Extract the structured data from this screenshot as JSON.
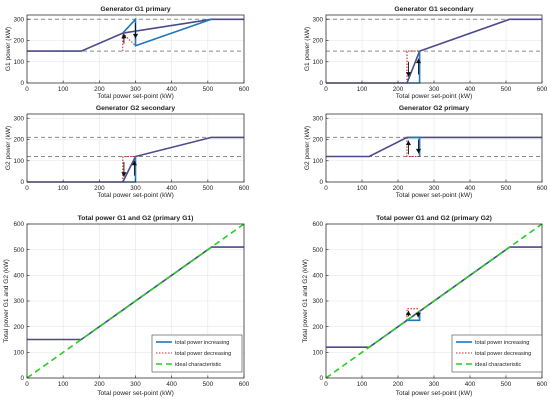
{
  "figure": {
    "colors": {
      "increasing": "#1f77bd",
      "decreasing": "#d62728",
      "ideal": "#22d022",
      "combined": "#4a4a8c",
      "ref": "#8a8a8a",
      "axis": "#333333",
      "grid": "#e6e6e6"
    }
  },
  "chart_data": [
    {
      "type": "line",
      "title": "Generator G1 primary",
      "xlabel": "Total power set-point (kW)",
      "ylabel": "G1 power (kW)",
      "xlim": [
        0,
        600
      ],
      "ylim": [
        0,
        320
      ],
      "xticks": [
        0,
        100,
        200,
        300,
        400,
        500,
        600
      ],
      "yticks": [
        0,
        100,
        200,
        300
      ],
      "grid": true,
      "reference_lines": [
        150,
        300
      ],
      "series": [
        {
          "role": "combined",
          "x": [
            0,
            150,
            265,
            510,
            600
          ],
          "y": [
            150,
            150,
            235,
            300,
            300
          ]
        },
        {
          "role": "decreasing",
          "x": [
            265,
            265,
            300
          ],
          "y": [
            150,
            235,
            175
          ]
        },
        {
          "role": "increasing",
          "x": [
            265,
            300,
            300,
            510
          ],
          "y": [
            235,
            300,
            175,
            300
          ]
        }
      ],
      "arrows": [
        {
          "x": 268,
          "from": 185,
          "to": 232,
          "role": "decreasing"
        },
        {
          "x": 300,
          "from": 282,
          "to": 210,
          "role": "increasing"
        }
      ]
    },
    {
      "type": "line",
      "title": "Generator G1 secondary",
      "xlabel": "Total power set-point (kW)",
      "ylabel": "G1 power (kW)",
      "xlim": [
        0,
        600
      ],
      "ylim": [
        0,
        320
      ],
      "xticks": [
        0,
        100,
        200,
        300,
        400,
        500,
        600
      ],
      "yticks": [
        0,
        100,
        200,
        300
      ],
      "grid": true,
      "reference_lines": [
        150,
        300
      ],
      "series": [
        {
          "role": "combined",
          "x": [
            0,
            225,
            260,
            510,
            600
          ],
          "y": [
            0,
            0,
            150,
            300,
            300
          ]
        },
        {
          "role": "decreasing",
          "x": [
            225,
            225,
            260
          ],
          "y": [
            0,
            150,
            150
          ]
        },
        {
          "role": "increasing",
          "x": [
            225,
            260,
            260
          ],
          "y": [
            0,
            0,
            150
          ]
        }
      ],
      "arrows": [
        {
          "x": 229,
          "from": 100,
          "to": 30,
          "role": "decreasing"
        },
        {
          "x": 257,
          "from": 40,
          "to": 115,
          "role": "increasing"
        }
      ]
    },
    {
      "type": "line",
      "title": "Generator G2 secondary",
      "xlabel": "Total power set-point (kW)",
      "ylabel": "G2 power (kW)",
      "xlim": [
        0,
        600
      ],
      "ylim": [
        0,
        320
      ],
      "xticks": [
        0,
        100,
        200,
        300,
        400,
        500,
        600
      ],
      "yticks": [
        0,
        100,
        200,
        300
      ],
      "grid": true,
      "reference_lines": [
        120,
        210
      ],
      "series": [
        {
          "role": "combined",
          "x": [
            0,
            265,
            300,
            510,
            600
          ],
          "y": [
            0,
            0,
            120,
            210,
            210
          ]
        },
        {
          "role": "decreasing",
          "x": [
            265,
            265,
            300
          ],
          "y": [
            0,
            120,
            120
          ]
        },
        {
          "role": "increasing",
          "x": [
            265,
            300,
            300
          ],
          "y": [
            0,
            0,
            120
          ]
        }
      ],
      "arrows": [
        {
          "x": 268,
          "from": 95,
          "to": 25,
          "role": "decreasing"
        },
        {
          "x": 297,
          "from": 30,
          "to": 100,
          "role": "increasing"
        }
      ]
    },
    {
      "type": "line",
      "title": "Generator G2 primary",
      "xlabel": "Total power set-point (kW)",
      "ylabel": "G2 power (kW)",
      "xlim": [
        0,
        600
      ],
      "ylim": [
        0,
        320
      ],
      "xticks": [
        0,
        100,
        200,
        300,
        400,
        500,
        600
      ],
      "yticks": [
        0,
        100,
        200,
        300
      ],
      "grid": true,
      "reference_lines": [
        120,
        210
      ],
      "series": [
        {
          "role": "combined",
          "x": [
            0,
            120,
            225,
            510,
            600
          ],
          "y": [
            120,
            120,
            210,
            210,
            210
          ]
        },
        {
          "role": "decreasing",
          "x": [
            225,
            225,
            260
          ],
          "y": [
            210,
            120,
            120
          ]
        },
        {
          "role": "increasing",
          "x": [
            225,
            260,
            260
          ],
          "y": [
            210,
            210,
            120
          ]
        }
      ],
      "arrows": [
        {
          "x": 229,
          "from": 130,
          "to": 195,
          "role": "decreasing"
        },
        {
          "x": 257,
          "from": 200,
          "to": 135,
          "role": "increasing"
        }
      ]
    },
    {
      "type": "line",
      "title": "Total power G1 and G2 (primary G1)",
      "xlabel": "Total power set-point (kW)",
      "ylabel": "Total power G1 and G2 (kW)",
      "xlim": [
        0,
        600
      ],
      "ylim": [
        0,
        600
      ],
      "xticks": [
        0,
        100,
        200,
        300,
        400,
        500,
        600
      ],
      "yticks": [
        0,
        100,
        200,
        300,
        400,
        500,
        600
      ],
      "grid": true,
      "legend": {
        "position": "bottom-right",
        "entries": [
          "total power increasing",
          "total power decreasing",
          "ideal characteristic"
        ]
      },
      "series": [
        {
          "role": "combined",
          "x": [
            0,
            150,
            510,
            600
          ],
          "y": [
            150,
            150,
            510,
            510
          ]
        },
        {
          "name": "ideal characteristic",
          "role": "ideal",
          "x": [
            0,
            600
          ],
          "y": [
            0,
            600
          ]
        }
      ]
    },
    {
      "type": "line",
      "title": "Total power G1 and G2 (primary G2)",
      "xlabel": "Total power set-point (kW)",
      "ylabel": "Total power G1 and G2 (kW)",
      "xlim": [
        0,
        600
      ],
      "ylim": [
        0,
        600
      ],
      "xticks": [
        0,
        100,
        200,
        300,
        400,
        500,
        600
      ],
      "yticks": [
        0,
        100,
        200,
        300,
        400,
        500,
        600
      ],
      "grid": true,
      "legend": {
        "position": "bottom-right",
        "entries": [
          "total power increasing",
          "total power decreasing",
          "ideal characteristic"
        ]
      },
      "series": [
        {
          "role": "combined",
          "x": [
            0,
            120,
            225,
            260,
            510,
            600
          ],
          "y": [
            120,
            120,
            225,
            260,
            510,
            510
          ]
        },
        {
          "role": "increasing",
          "x": [
            225,
            260,
            260
          ],
          "y": [
            225,
            225,
            260
          ]
        },
        {
          "role": "decreasing",
          "x": [
            225,
            225,
            260
          ],
          "y": [
            225,
            270,
            270
          ]
        },
        {
          "name": "ideal characteristic",
          "role": "ideal",
          "x": [
            0,
            600
          ],
          "y": [
            0,
            600
          ]
        }
      ],
      "arrows": [
        {
          "x": 229,
          "from": 240,
          "to": 262,
          "role": "decreasing"
        },
        {
          "x": 256,
          "from": 258,
          "to": 236,
          "role": "increasing"
        }
      ]
    }
  ]
}
